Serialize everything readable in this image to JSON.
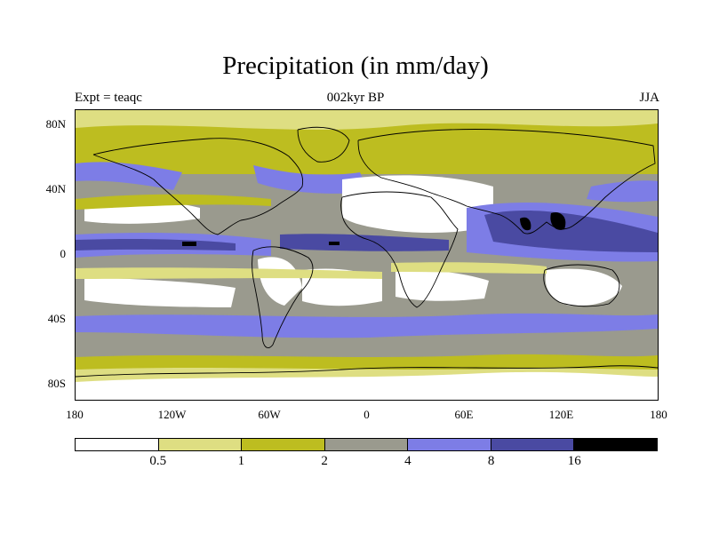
{
  "title": "Precipitation (in mm/day)",
  "subtitle_left": "Expt = teaqc",
  "subtitle_center": "002kyr BP",
  "subtitle_right": "JJA",
  "lat_ticks": [
    {
      "label": "80N",
      "lat": 80
    },
    {
      "label": "40N",
      "lat": 40
    },
    {
      "label": "0",
      "lat": 0
    },
    {
      "label": "40S",
      "lat": -40
    },
    {
      "label": "80S",
      "lat": -80
    }
  ],
  "lon_ticks": [
    {
      "label": "180",
      "lon": -180
    },
    {
      "label": "120W",
      "lon": -120
    },
    {
      "label": "60W",
      "lon": -60
    },
    {
      "label": "0",
      "lon": 0
    },
    {
      "label": "60E",
      "lon": 60
    },
    {
      "label": "120E",
      "lon": 120
    },
    {
      "label": "180",
      "lon": 180
    }
  ],
  "colorbar": {
    "levels": [
      "0.5",
      "1",
      "2",
      "4",
      "8",
      "16"
    ],
    "colors": [
      "#ffffff",
      "#dede82",
      "#bdbd20",
      "#9a9a8e",
      "#7d7de6",
      "#4a4aa2",
      "#000000"
    ]
  },
  "map_colors": {
    "dry": "#ffffff",
    "light": "#dede82",
    "olive": "#bdbd20",
    "gray": "#9a9a8e",
    "blue": "#7d7de6",
    "navy": "#4a4aa2",
    "black": "#000000",
    "coast": "#000000"
  }
}
